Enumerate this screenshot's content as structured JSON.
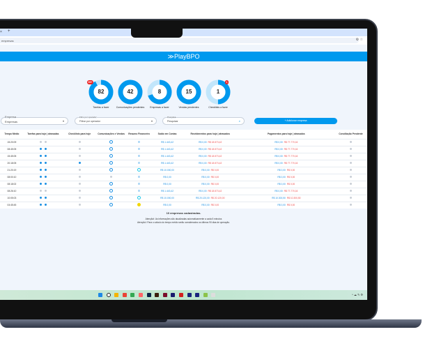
{
  "browser": {
    "tab_close": "×",
    "new_tab": "+",
    "address": "empresas",
    "address_icons": "⚙ ☆"
  },
  "header": {
    "logo": "PlayBPO",
    "logo_mark": "≫"
  },
  "kpis": [
    {
      "value": "82",
      "label": "Tarefas a fazer",
      "fill": 0.92,
      "badge": "99+"
    },
    {
      "value": "42",
      "label": "Comunicações pendentes",
      "fill": 1.0,
      "badge": ""
    },
    {
      "value": "8",
      "label": "Empresas a fazer",
      "fill": 0.7,
      "badge": ""
    },
    {
      "value": "15",
      "label": "Vendas pendentes",
      "fill": 1.0,
      "badge": ""
    },
    {
      "value": "1",
      "label": "Checklists a fazer",
      "fill": 0.5,
      "badge": "1"
    }
  ],
  "filters": {
    "empresa_label": "Empresa",
    "empresa_value": "Empresas",
    "operador_label": "Filtro por operador",
    "operador_value": "Filtrar por operador",
    "search_label": "Pesquisa",
    "search_placeholder": "Pesquisar",
    "add_button": "+ Adicionar empresa"
  },
  "table": {
    "headers": [
      "Tempo Médio",
      "Tarefas para hoje | atrasadas",
      "Checklists para hoje",
      "Comunicações e Vendas",
      "Resumo Financeiro",
      "Saldo em Contas",
      "Recebimentos para hoje | atrasados",
      "Pagamentos para hoje | atrasados",
      "Conciliação Pendente"
    ],
    "rows": [
      {
        "tempo": "15:20:09",
        "tarefas": [
          "gray",
          "gray"
        ],
        "checklist": "gray",
        "com": "circle",
        "resumo": "e",
        "saldo": "R$ 1.443,42",
        "rec": [
          "R$ 0,00",
          "R$ 18.573,42"
        ],
        "pag": [
          "R$ 0,00",
          "R$ 77.770,16"
        ]
      },
      {
        "tempo": "08:45:05",
        "tarefas": [
          "blue",
          "blue"
        ],
        "checklist": "gray",
        "com": "circle",
        "resumo": "e",
        "saldo": "R$ 1.443,42",
        "rec": [
          "R$ 0,00",
          "R$ 18.573,42"
        ],
        "pag": [
          "R$ 0,00",
          "R$ 77.770,16"
        ]
      },
      {
        "tempo": "15:45:05",
        "tarefas": [
          "blue",
          "blue"
        ],
        "checklist": "gray",
        "com": "circle",
        "resumo": "e",
        "saldo": "R$ 1.443,42",
        "rec": [
          "R$ 0,00",
          "R$ 18.573,42"
        ],
        "pag": [
          "R$ 0,00",
          "R$ 77.770,16"
        ]
      },
      {
        "tempo": "20:18:05",
        "tarefas": [
          "blue",
          "blue"
        ],
        "checklist": "blue",
        "com": "circle",
        "resumo": "e",
        "saldo": "R$ 1.443,42",
        "rec": [
          "R$ 0,00",
          "R$ 18.573,42"
        ],
        "pag": [
          "R$ 0,00",
          "R$ 77.770,16"
        ]
      },
      {
        "tempo": "21:20:19",
        "tarefas": [
          "blue",
          "blue"
        ],
        "checklist": "gray",
        "com": "circle",
        "resumo": "clock",
        "saldo": "R$ 10.000,00",
        "rec": [
          "R$ 0,00",
          "R$ 0,00"
        ],
        "pag": [
          "R$ 0,00",
          "R$ 0,00"
        ]
      },
      {
        "tempo": "08:00:10",
        "tarefas": [
          "blue",
          "blue"
        ],
        "checklist": "gray",
        "com": "gray",
        "resumo": "e",
        "saldo": "R$ 0,00",
        "rec": [
          "R$ 0,00",
          "R$ 0,00"
        ],
        "pag": [
          "R$ 0,00",
          "R$ 0,00"
        ]
      },
      {
        "tempo": "08:18:02",
        "tarefas": [
          "blue",
          "blue"
        ],
        "checklist": "gray",
        "com": "circle",
        "resumo": "e",
        "saldo": "R$ 0,00",
        "rec": [
          "R$ 0,00",
          "R$ 0,00"
        ],
        "pag": [
          "R$ 0,00",
          "R$ 0,00"
        ]
      },
      {
        "tempo": "08:26:10",
        "tarefas": [
          "gray",
          "gray"
        ],
        "checklist": "gray",
        "com": "circle",
        "resumo": "e",
        "saldo": "R$ 1.443,42",
        "rec": [
          "R$ 0,00",
          "R$ 18.573,42"
        ],
        "pag": [
          "R$ 0,00",
          "R$ 77.770,16"
        ]
      },
      {
        "tempo": "10:05:03",
        "tarefas": [
          "blue",
          "blue"
        ],
        "checklist": "gray",
        "com": "circle",
        "resumo": "clock",
        "saldo": "R$ 10.000,00",
        "rec": [
          "R$ 20.120,00",
          "R$ 20.120,00"
        ],
        "pag": [
          "R$ 10.300,50",
          "R$ 10.300,50"
        ]
      },
      {
        "tempo": "04:45:45",
        "tarefas": [
          "blue",
          "blue"
        ],
        "checklist": "gray",
        "com": "circle",
        "resumo": "warn",
        "saldo": "R$ 0,00",
        "rec": [
          "R$ 0,00",
          "R$ 0,00"
        ],
        "pag": [
          "R$ 0,00",
          "R$ 0,00"
        ]
      }
    ]
  },
  "footer": {
    "count": "10 empresas cadastradas.",
    "note1": "Atenção!: As informações são atualizadas automaticamente a cada 5 minutos",
    "note2": "Atenção!: Para o cálculo do tempo médio serão considerados os últimos 90 dias de operação."
  },
  "taskbar": {
    "icons": [
      "windows-start",
      "search",
      "file-explorer",
      "chrome",
      "app-green",
      "app-red",
      "app-dark1",
      "app-dark2",
      "app-maroon",
      "app-navy",
      "acrobat",
      "app-navy2",
      "app-navy3",
      "notepad",
      "app-gray"
    ],
    "tray": "^ ☁ ✎ ⚙"
  },
  "colors": {
    "accent": "#0099ee",
    "light": "#c2e6fb",
    "danger": "#ee4b4b"
  }
}
